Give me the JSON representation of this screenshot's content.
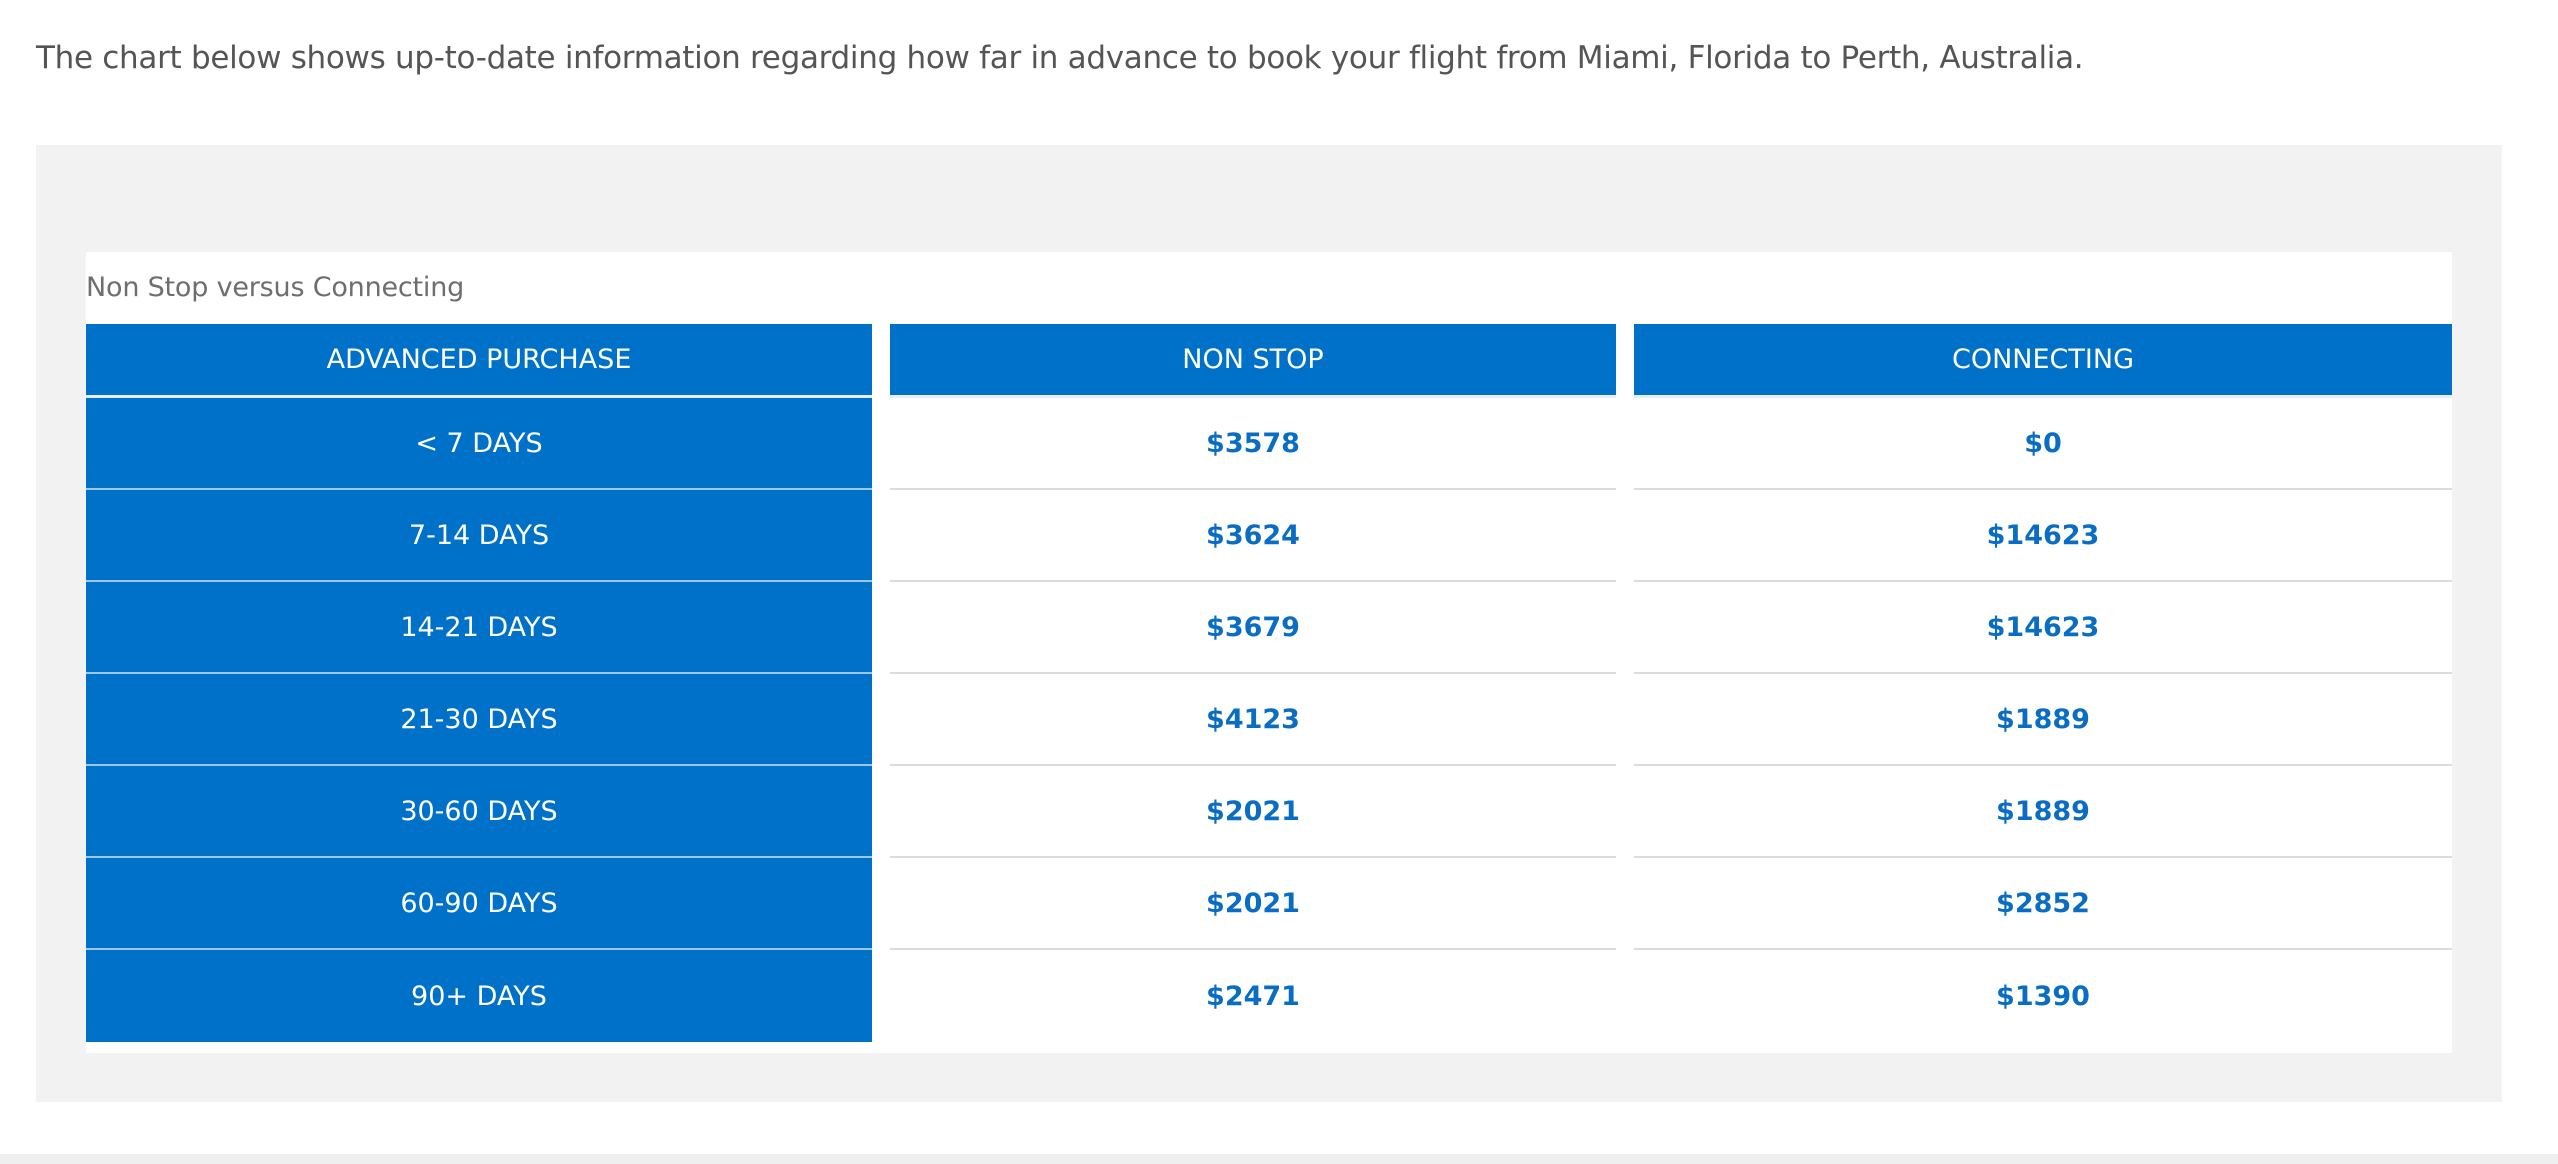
{
  "intro_text": "The chart below shows up-to-date information regarding how far in advance to book your flight from Miami, Florida to Perth, Australia.",
  "chart_data": {
    "type": "table",
    "title": "Non Stop versus Connecting",
    "columns": [
      "ADVANCED PURCHASE",
      "NON STOP",
      "CONNECTING"
    ],
    "rows": [
      {
        "purchase": "< 7 DAYS",
        "non_stop": "$3578",
        "connecting": "$0"
      },
      {
        "purchase": "7-14 DAYS",
        "non_stop": "$3624",
        "connecting": "$14623"
      },
      {
        "purchase": "14-21 DAYS",
        "non_stop": "$3679",
        "connecting": "$14623"
      },
      {
        "purchase": "21-30 DAYS",
        "non_stop": "$4123",
        "connecting": "$1889"
      },
      {
        "purchase": "30-60 DAYS",
        "non_stop": "$2021",
        "connecting": "$1889"
      },
      {
        "purchase": "60-90 DAYS",
        "non_stop": "$2021",
        "connecting": "$2852"
      },
      {
        "purchase": "90+ DAYS",
        "non_stop": "$2471",
        "connecting": "$1390"
      }
    ]
  },
  "colors": {
    "header_blue": "#0071c9",
    "value_blue": "#0a6dc4",
    "panel_gray": "#f2f2f2"
  }
}
